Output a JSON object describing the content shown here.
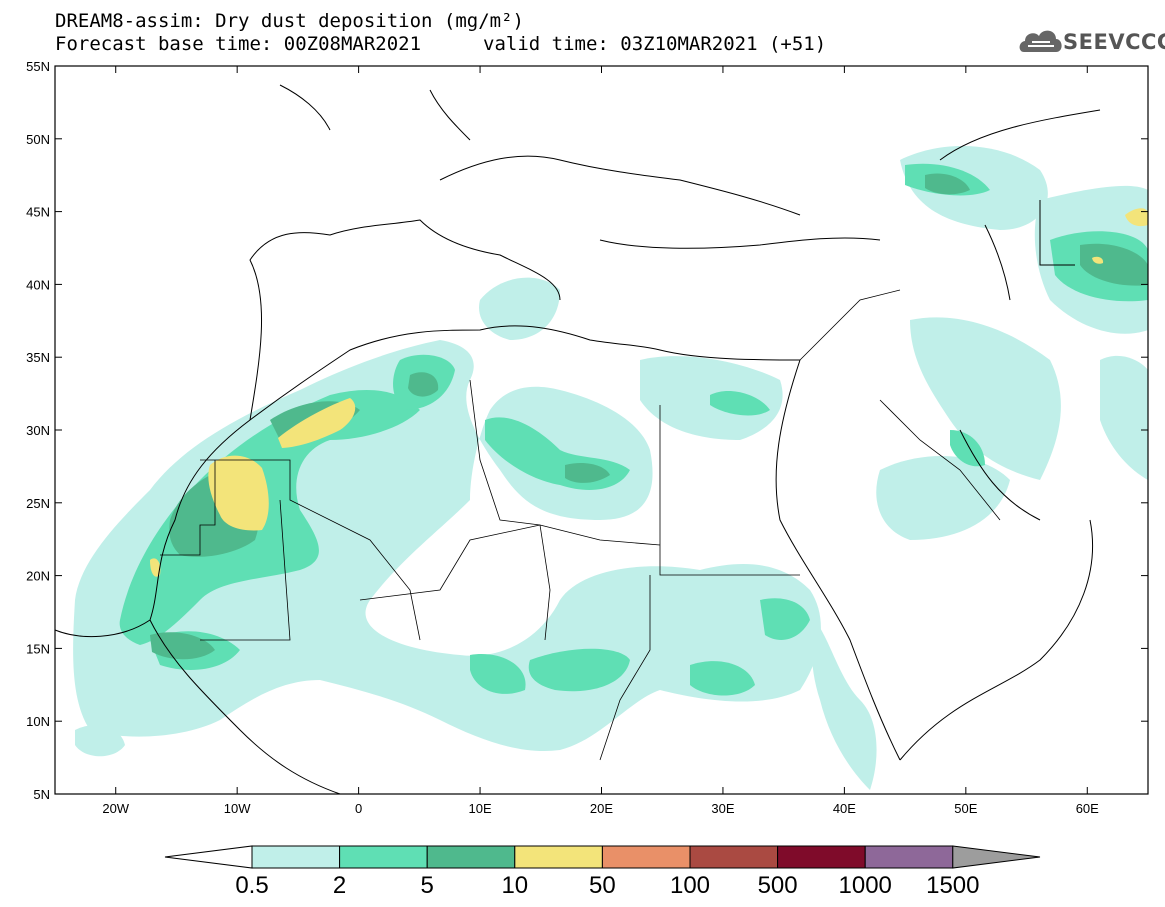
{
  "header": {
    "title": "DREAM8-assim: Dry dust deposition (mg/m²)",
    "base_time": "Forecast base time: 00Z08MAR2021",
    "valid_time": "valid time: 03Z10MAR2021 (+51)",
    "logo_text": "SEEVCCC"
  },
  "axes": {
    "lat_labels": [
      "55N",
      "50N",
      "45N",
      "40N",
      "35N",
      "30N",
      "25N",
      "20N",
      "15N",
      "10N",
      "5N"
    ],
    "lon_labels": [
      "20W",
      "10W",
      "0",
      "10E",
      "20E",
      "30E",
      "40E",
      "50E",
      "60E"
    ]
  },
  "colorbar": {
    "labels": [
      "0.5",
      "2",
      "5",
      "10",
      "50",
      "100",
      "500",
      "1000",
      "1500"
    ],
    "colors": [
      "#ffffff",
      "#c0efe9",
      "#5fdfb4",
      "#4fb98d",
      "#f3e47a",
      "#e99068",
      "#aa4a42",
      "#7f0b2a",
      "#8e6899",
      "#9d9d9d"
    ]
  },
  "map_data": {
    "extent": {
      "lon": [
        -25,
        65
      ],
      "lat": [
        5,
        55
      ]
    },
    "level_colors": {
      "0.5": "#c0efe9",
      "2": "#5fdfb4",
      "5": "#4fb98d",
      "10": "#f3e47a"
    }
  }
}
